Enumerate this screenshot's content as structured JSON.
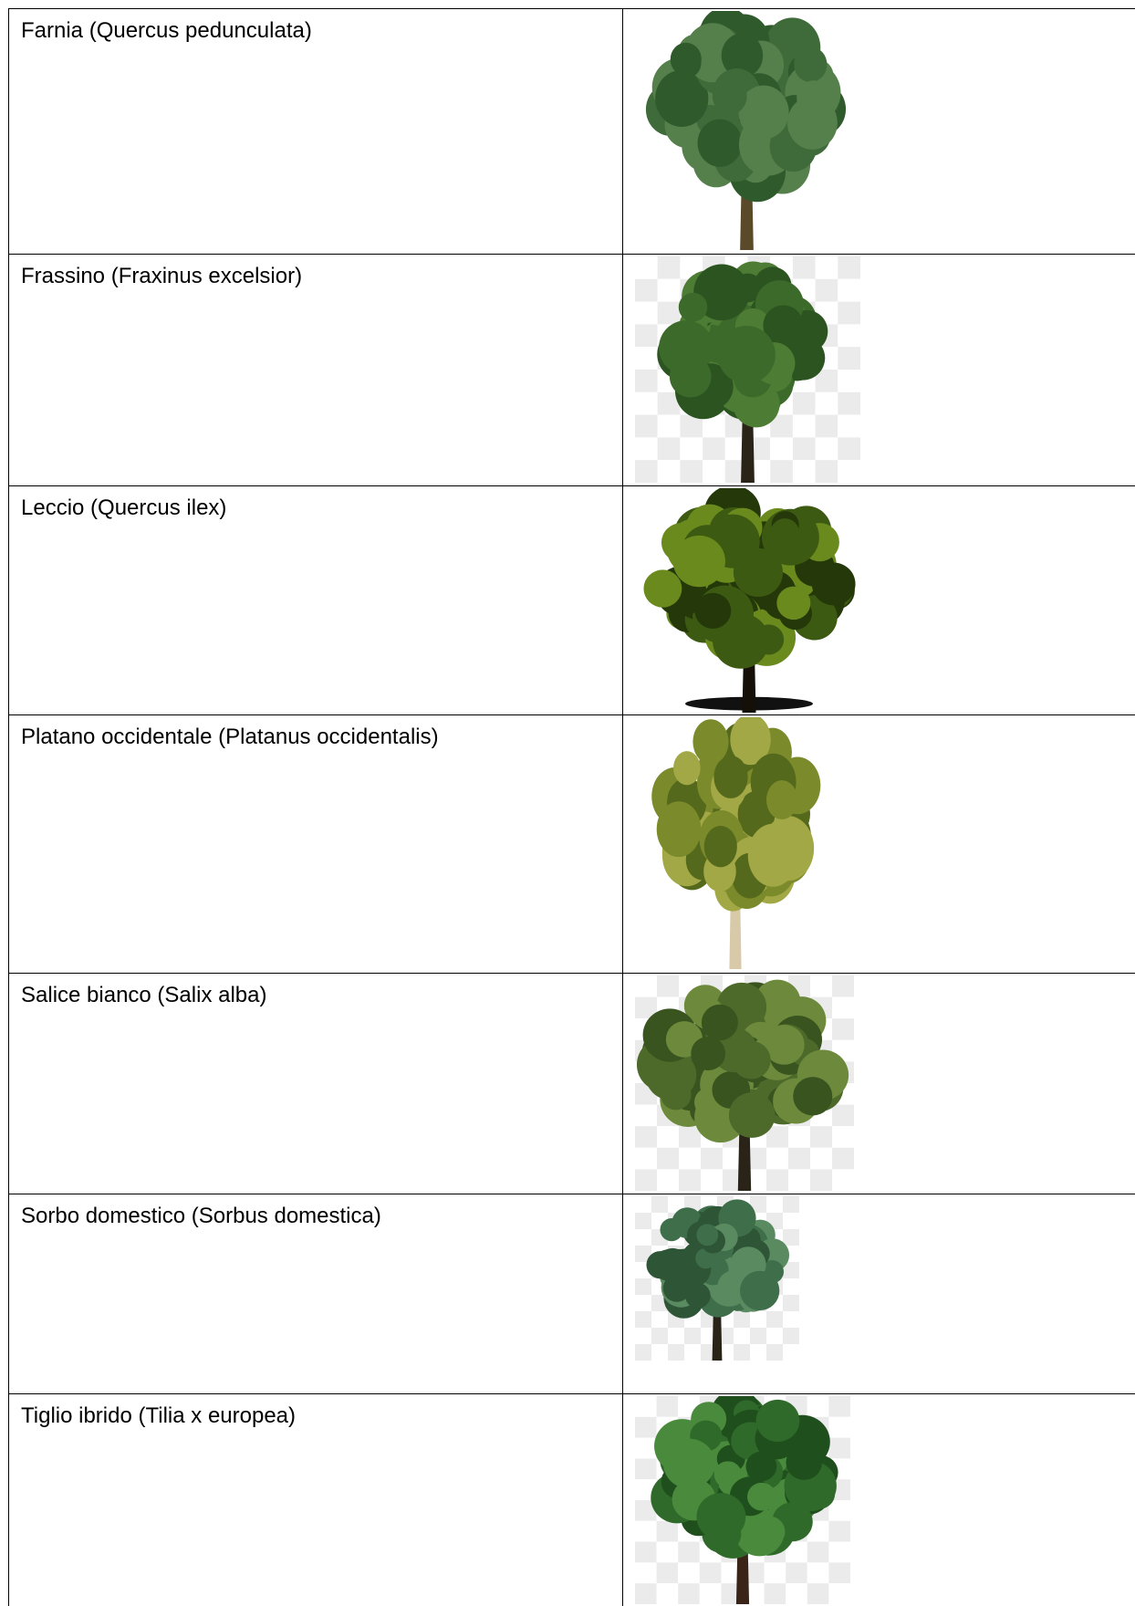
{
  "table": {
    "rows": [
      [
        "Farnia (Quercus pedunculata)"
      ],
      [
        "Frassino (Fraxinus excelsior)"
      ],
      [
        "Leccio (Quercus ilex)"
      ],
      [
        "Platano occidentale (Platanus occidentalis)"
      ],
      [
        "Salice bianco (Salix alba)"
      ],
      [
        "Sorbo domestico (Sorbus domestica)"
      ],
      [
        "Tiglio ibrido (Tilia x europea)"
      ]
    ]
  }
}
